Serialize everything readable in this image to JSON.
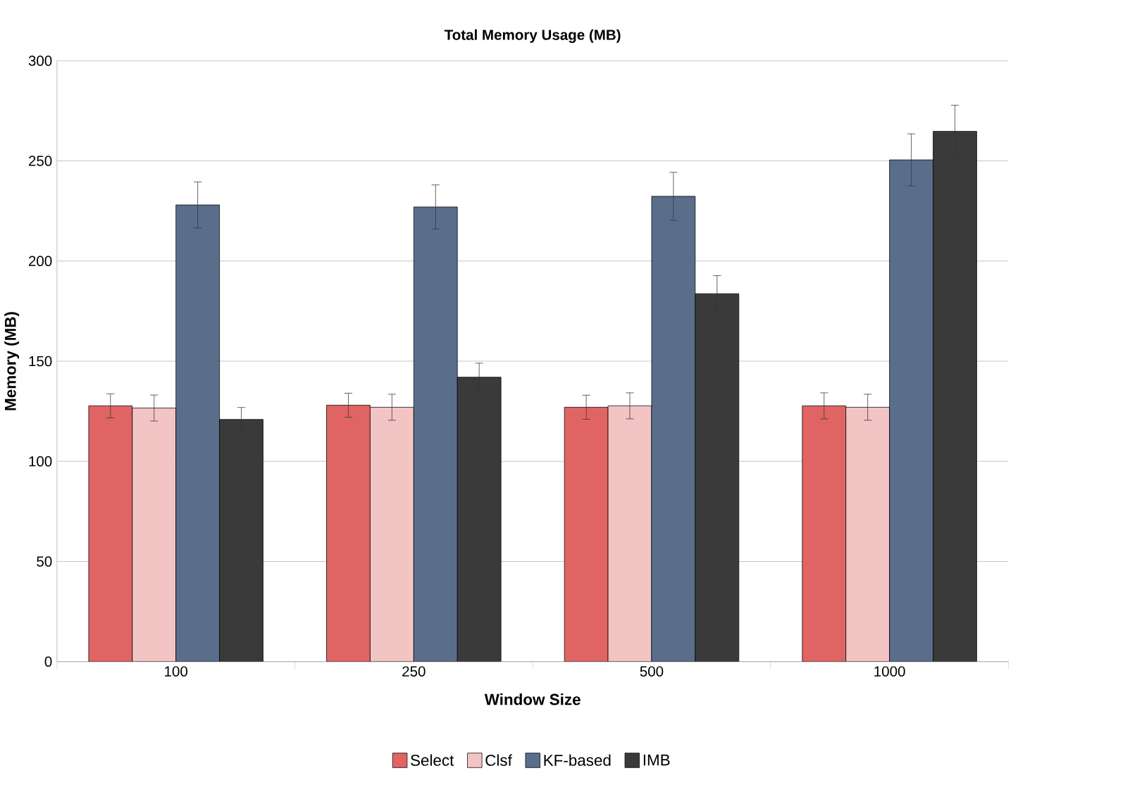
{
  "chart_data": {
    "type": "bar",
    "title": "Total Memory Usage (MB)",
    "xlabel": "Window Size",
    "ylabel": "Memory (MB)",
    "categories": [
      "100",
      "250",
      "500",
      "1000"
    ],
    "series": [
      {
        "name": "Select",
        "color": "#e06464",
        "values": [
          127.7,
          128,
          127,
          127.7
        ],
        "errors": [
          6,
          6,
          6,
          6.5
        ]
      },
      {
        "name": "Clsf",
        "color": "#f2c4c4",
        "values": [
          126.6,
          127,
          127.7,
          127
        ],
        "errors": [
          6.5,
          6.5,
          6.5,
          6.5
        ]
      },
      {
        "name": "KF-based",
        "color": "#5a6e8c",
        "values": [
          228,
          227,
          232.3,
          250.5
        ],
        "errors": [
          11.5,
          11,
          12,
          13
        ]
      },
      {
        "name": "IMB",
        "color": "#3a3a3a",
        "values": [
          120.9,
          142,
          183.7,
          264.8
        ],
        "errors": [
          6,
          7,
          9,
          13
        ]
      }
    ],
    "ylim": [
      0,
      300
    ],
    "yticks": [
      0,
      50,
      100,
      150,
      200,
      250,
      300
    ],
    "grid": "y",
    "legend": "bottom"
  }
}
